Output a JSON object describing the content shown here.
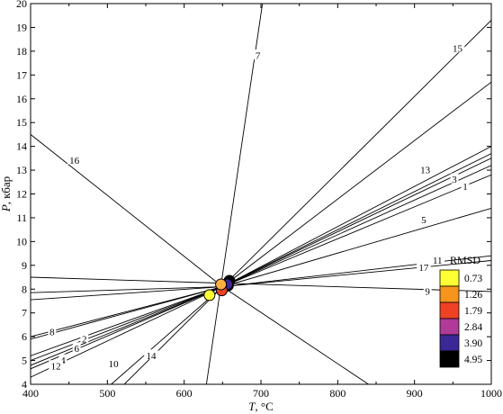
{
  "chart_data": {
    "type": "line",
    "title": "",
    "xlabel_var": "T",
    "xlabel_unit": ", °C",
    "ylabel_var": "P",
    "ylabel_unit": ", кбар",
    "xlim": [
      400,
      1000
    ],
    "ylim": [
      4,
      20
    ],
    "x_ticks": [
      400,
      500,
      600,
      700,
      800,
      900,
      1000
    ],
    "y_ticks": [
      4,
      5,
      6,
      7,
      8,
      9,
      10,
      11,
      12,
      13,
      14,
      15,
      16,
      17,
      18,
      19,
      20
    ],
    "grid": false,
    "lines": [
      {
        "label": "7",
        "points": [
          [
            629,
            4.0
          ],
          [
            702,
            20.0
          ]
        ],
        "label_at": [
          696,
          17.8
        ]
      },
      {
        "label": "15",
        "points": [
          [
            650,
            8.1
          ],
          [
            1000,
            19.3
          ]
        ],
        "label_at": [
          956,
          18.1
        ]
      },
      {
        "label": "",
        "points": [
          [
            650,
            8.1
          ],
          [
            1000,
            16.7
          ]
        ]
      },
      {
        "label": "",
        "points": [
          [
            650,
            8.1
          ],
          [
            1000,
            14.0
          ]
        ]
      },
      {
        "label": "13",
        "points": [
          [
            650,
            8.1
          ],
          [
            1000,
            13.7
          ]
        ],
        "label_at": [
          914,
          13.0
        ]
      },
      {
        "label": "",
        "points": [
          [
            650,
            8.1
          ],
          [
            1000,
            13.5
          ]
        ]
      },
      {
        "label": "3",
        "points": [
          [
            650,
            8.1
          ],
          [
            1000,
            13.2
          ]
        ],
        "label_at": [
          952,
          12.6
        ]
      },
      {
        "label": "1",
        "points": [
          [
            650,
            8.1
          ],
          [
            1000,
            12.8
          ]
        ],
        "label_at": [
          966,
          12.3
        ]
      },
      {
        "label": "5",
        "points": [
          [
            650,
            8.1
          ],
          [
            1000,
            11.4
          ]
        ],
        "label_at": [
          912,
          10.9
        ]
      },
      {
        "label": "11",
        "points": [
          [
            650,
            8.1
          ],
          [
            1000,
            9.4
          ]
        ],
        "label_at": [
          930,
          9.2
        ]
      },
      {
        "label": "17",
        "points": [
          [
            650,
            8.1
          ],
          [
            1000,
            9.2
          ]
        ],
        "label_at": [
          912,
          8.9
        ]
      },
      {
        "label": "9",
        "points": [
          [
            400,
            8.5
          ],
          [
            1000,
            7.9
          ]
        ],
        "label_at": [
          917,
          7.9
        ]
      },
      {
        "label": "16",
        "points": [
          [
            400,
            14.5
          ],
          [
            650,
            8.1
          ],
          [
            840,
            4.0
          ]
        ],
        "label_at": [
          457,
          13.4
        ]
      },
      {
        "label": "",
        "points": [
          [
            400,
            7.85
          ],
          [
            650,
            8.1
          ]
        ]
      },
      {
        "label": "",
        "points": [
          [
            400,
            7.55
          ],
          [
            650,
            8.1
          ]
        ]
      },
      {
        "label": "8",
        "points": [
          [
            400,
            6.0
          ],
          [
            650,
            8.1
          ]
        ],
        "label_at": [
          428,
          6.2
        ]
      },
      {
        "label": "",
        "points": [
          [
            400,
            5.9
          ],
          [
            650,
            8.1
          ]
        ]
      },
      {
        "label": "2",
        "points": [
          [
            400,
            5.2
          ],
          [
            650,
            8.1
          ]
        ],
        "label_at": [
          470,
          5.9
        ]
      },
      {
        "label": "6",
        "points": [
          [
            400,
            5.0
          ],
          [
            650,
            8.1
          ]
        ],
        "label_at": [
          460,
          5.5
        ]
      },
      {
        "label": "4",
        "points": [
          [
            400,
            4.8
          ],
          [
            650,
            8.1
          ]
        ],
        "label_at": [
          442,
          5.0
        ]
      },
      {
        "label": "",
        "points": [
          [
            400,
            4.65
          ],
          [
            650,
            8.1
          ]
        ]
      },
      {
        "label": "12",
        "points": [
          [
            400,
            4.3
          ],
          [
            650,
            8.1
          ]
        ],
        "label_at": [
          433,
          4.75
        ]
      },
      {
        "label": "10",
        "points": [
          [
            505,
            4.0
          ],
          [
            650,
            8.1
          ]
        ],
        "label_at": [
          508,
          4.85
        ]
      },
      {
        "label": "14",
        "points": [
          [
            522,
            4.0
          ],
          [
            650,
            8.1
          ]
        ],
        "label_at": [
          557,
          5.2
        ]
      }
    ],
    "points": [
      {
        "x": 657,
        "y": 8.15,
        "rmsd": "4.95"
      },
      {
        "x": 659,
        "y": 8.35,
        "rmsd": "4.95"
      },
      {
        "x": 656,
        "y": 8.2,
        "rmsd": "3.90"
      },
      {
        "x": 649,
        "y": 7.95,
        "rmsd": "1.79"
      },
      {
        "x": 633,
        "y": 7.75,
        "rmsd": "0.73"
      },
      {
        "x": 648,
        "y": 8.2,
        "rmsd": "1.26"
      }
    ],
    "legend": {
      "title": "RMSD",
      "placement": "bottom-right",
      "entries": [
        {
          "label": "0.73",
          "color": "#ffff33"
        },
        {
          "label": "1.26",
          "color": "#f7941d"
        },
        {
          "label": "1.79",
          "color": "#ef4123"
        },
        {
          "label": "2.84",
          "color": "#b03a97"
        },
        {
          "label": "3.90",
          "color": "#3b2796"
        },
        {
          "label": "4.95",
          "color": "#000000"
        }
      ]
    },
    "marker_colors": {
      "0.73": "#ffff33",
      "1.26": "#fbb040",
      "1.79": "#ef4123",
      "2.84": "#b03a97",
      "3.90": "#3b2796",
      "4.95": "#000000"
    }
  }
}
